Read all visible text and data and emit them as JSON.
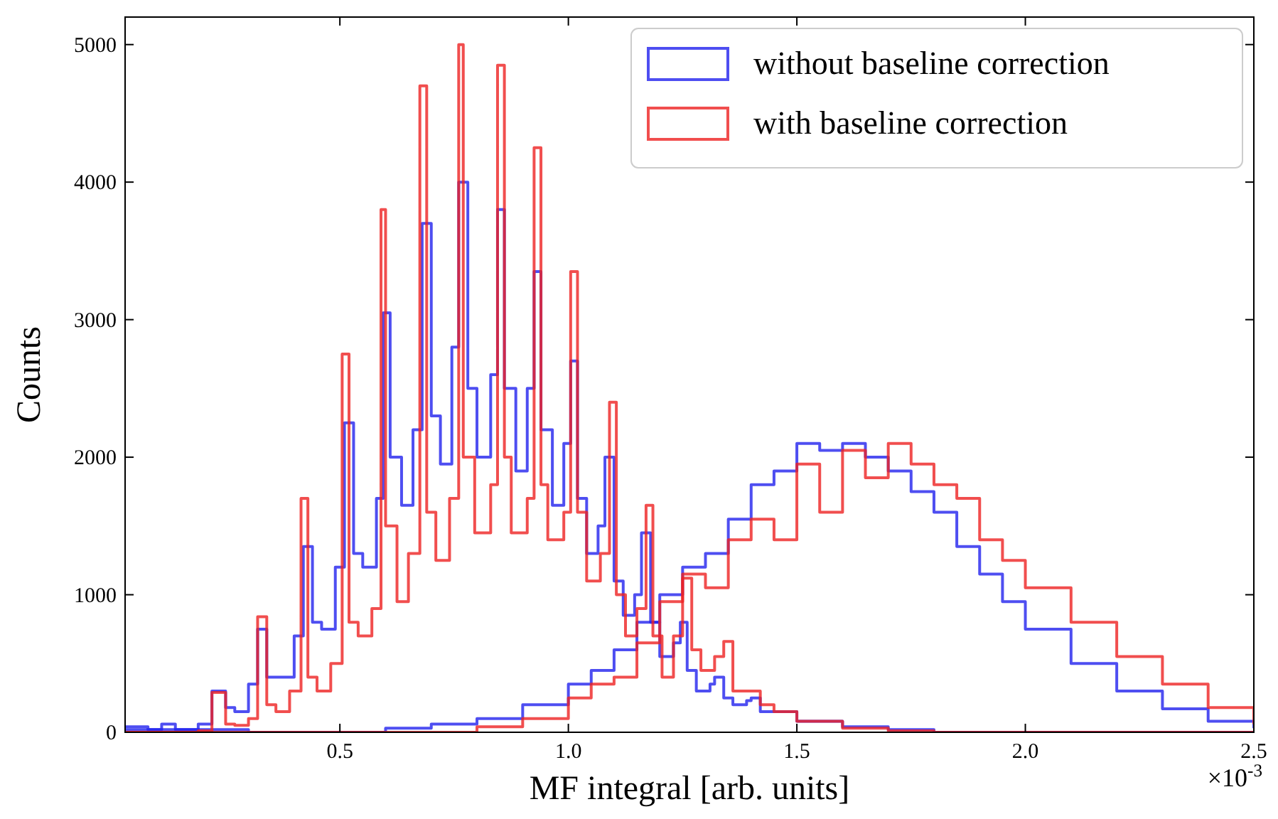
{
  "chart_data": {
    "type": "step",
    "xlabel": "MF integral [arb. units]",
    "ylabel": "Counts",
    "annotations": [
      "×10$^{-3}$"
    ],
    "xlim": [
      0.03,
      2.5
    ],
    "xticks": [
      0.5,
      {
        "value": 1,
        "label": "1.0"
      },
      1.5,
      {
        "value": 2,
        "label": "2.0"
      },
      2.5
    ],
    "ylim": [
      0,
      5200
    ],
    "yticks": [
      0,
      1000,
      2000,
      3000,
      4000,
      5000
    ],
    "grid": false,
    "legend": "top right",
    "series": [
      {
        "name": "without baseline correction",
        "color": "#2222ee",
        "x": [
          0.03,
          0.08,
          0.11,
          0.14,
          0.19,
          0.22,
          0.25,
          0.27,
          0.3,
          0.32,
          0.34,
          0.37,
          0.4,
          0.42,
          0.44,
          0.46,
          0.49,
          0.51,
          0.53,
          0.55,
          0.58,
          0.595,
          0.61,
          0.635,
          0.66,
          0.68,
          0.7,
          0.72,
          0.745,
          0.76,
          0.78,
          0.8,
          0.83,
          0.845,
          0.86,
          0.885,
          0.91,
          0.925,
          0.94,
          0.965,
          0.99,
          1.005,
          1.02,
          1.04,
          1.065,
          1.08,
          1.1,
          1.12,
          1.145,
          1.16,
          1.18,
          1.2,
          1.23,
          1.245,
          1.26,
          1.28,
          1.31,
          1.32,
          1.34,
          1.36,
          1.39,
          1.4,
          1.42,
          1.5,
          1.6,
          1.7,
          1.8,
          1.9,
          2.5
        ],
        "values": [
          40,
          20,
          60,
          20,
          60,
          300,
          180,
          150,
          350,
          750,
          400,
          400,
          700,
          1350,
          800,
          750,
          1200,
          2250,
          1300,
          1200,
          1700,
          3050,
          2000,
          1650,
          2200,
          3700,
          2300,
          1950,
          2800,
          4000,
          2500,
          2000,
          2600,
          3800,
          2500,
          1900,
          2500,
          3350,
          2200,
          1650,
          2100,
          2700,
          1700,
          1300,
          1500,
          2000,
          1100,
          850,
          1000,
          1450,
          800,
          550,
          650,
          800,
          450,
          300,
          350,
          400,
          250,
          200,
          230,
          250,
          150,
          80,
          40,
          20,
          0,
          0,
          0
        ]
      },
      {
        "color": "#2222ee",
        "x": [
          0.03,
          0.3,
          0.6,
          0.7,
          0.8,
          0.9,
          1.0,
          1.05,
          1.1,
          1.15,
          1.2,
          1.25,
          1.3,
          1.35,
          1.4,
          1.45,
          1.5,
          1.55,
          1.6,
          1.65,
          1.7,
          1.75,
          1.8,
          1.85,
          1.9,
          1.95,
          2.0,
          2.1,
          2.2,
          2.3,
          2.4,
          2.5
        ],
        "values": [
          20,
          0,
          30,
          60,
          100,
          200,
          350,
          450,
          600,
          800,
          1000,
          1200,
          1300,
          1550,
          1800,
          1900,
          2100,
          2050,
          2100,
          2000,
          1900,
          1750,
          1600,
          1350,
          1150,
          950,
          750,
          500,
          300,
          170,
          80,
          30
        ]
      },
      {
        "name": "with baseline correction",
        "color": "#ee2222",
        "x": [
          0.03,
          0.19,
          0.22,
          0.25,
          0.27,
          0.3,
          0.32,
          0.34,
          0.36,
          0.39,
          0.415,
          0.43,
          0.45,
          0.48,
          0.505,
          0.52,
          0.54,
          0.57,
          0.59,
          0.6,
          0.625,
          0.65,
          0.675,
          0.69,
          0.71,
          0.74,
          0.76,
          0.77,
          0.795,
          0.83,
          0.845,
          0.86,
          0.875,
          0.91,
          0.925,
          0.94,
          0.955,
          0.99,
          1.005,
          1.02,
          1.04,
          1.07,
          1.09,
          1.105,
          1.125,
          1.15,
          1.17,
          1.185,
          1.205,
          1.23,
          1.25,
          1.27,
          1.29,
          1.32,
          1.34,
          1.36,
          1.4,
          1.42,
          1.45,
          1.48,
          1.5,
          1.6,
          1.7,
          1.8,
          2.5
        ],
        "values": [
          0,
          10,
          290,
          60,
          50,
          100,
          840,
          200,
          150,
          300,
          1700,
          400,
          300,
          500,
          2750,
          800,
          700,
          900,
          3800,
          1500,
          950,
          1300,
          4700,
          1600,
          1250,
          1700,
          5000,
          2000,
          1450,
          1800,
          4850,
          2000,
          1450,
          1700,
          4250,
          1800,
          1400,
          1600,
          3350,
          1600,
          1100,
          1300,
          2400,
          1000,
          700,
          900,
          1650,
          700,
          400,
          700,
          1120,
          600,
          450,
          550,
          660,
          300,
          300,
          200,
          150,
          150,
          80,
          30,
          10,
          0,
          0
        ]
      },
      {
        "color": "#ee2222",
        "x": [
          0.03,
          0.6,
          0.8,
          0.9,
          1.0,
          1.05,
          1.1,
          1.15,
          1.2,
          1.25,
          1.3,
          1.35,
          1.4,
          1.45,
          1.5,
          1.55,
          1.6,
          1.65,
          1.7,
          1.75,
          1.8,
          1.85,
          1.9,
          1.95,
          2.0,
          2.1,
          2.2,
          2.3,
          2.4,
          2.5
        ],
        "values": [
          0,
          0,
          40,
          100,
          250,
          350,
          400,
          650,
          950,
          1150,
          1050,
          1400,
          1550,
          1400,
          1950,
          1600,
          2050,
          1850,
          2100,
          1950,
          1800,
          1700,
          1400,
          1250,
          1050,
          800,
          550,
          350,
          180,
          60
        ]
      }
    ]
  }
}
